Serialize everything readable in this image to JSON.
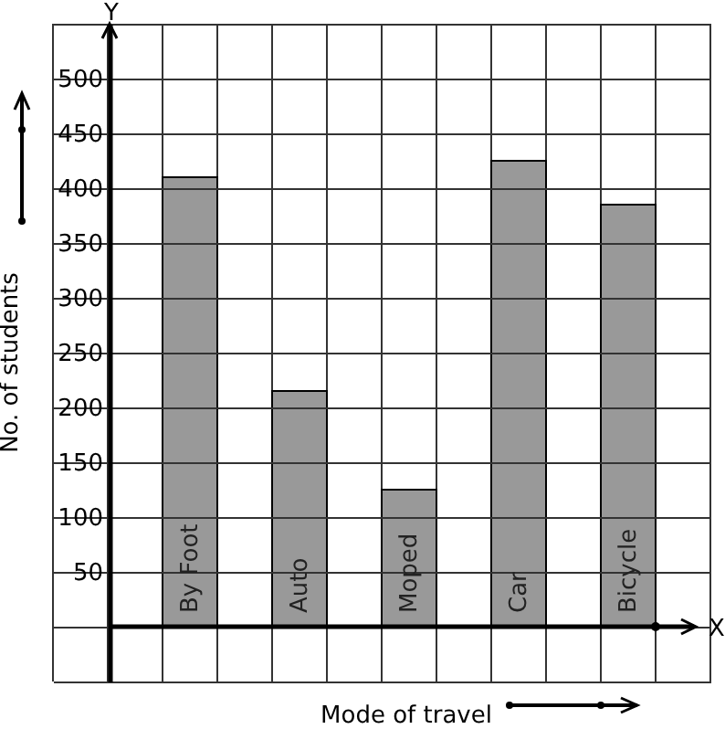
{
  "chart_data": {
    "type": "bar",
    "xlabel": "Mode of travel",
    "ylabel": "No. of students",
    "annotations": [
      "Y",
      "X"
    ],
    "categories": [
      "By Foot",
      "Auto",
      "Moped",
      "Car",
      "Bicycle"
    ],
    "series": [
      {
        "color": "#999999",
        "values": [
          410,
          215,
          125,
          425,
          385
        ]
      }
    ],
    "ylim": [
      -50,
      550
    ],
    "yticks": [
      {
        "value": -50,
        "label": null
      },
      {
        "value": 0,
        "label": null
      },
      50,
      100,
      150,
      200,
      250,
      300,
      350,
      400,
      450,
      500,
      {
        "value": 550,
        "label": null
      }
    ],
    "grid": true
  }
}
